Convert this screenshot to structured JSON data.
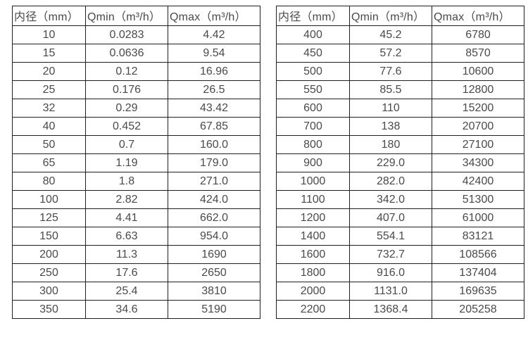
{
  "colors": {
    "background": "#ffffff",
    "border": "#1f1f1f",
    "text": "#4a4a4a"
  },
  "tables": [
    {
      "name": "flow-rates-small-diameters",
      "headers": [
        "内径（mm）",
        "Qmin（m³/h）",
        "Qmax（m³/h）"
      ],
      "rows": [
        [
          "10",
          "0.0283",
          "4.42"
        ],
        [
          "15",
          "0.0636",
          "9.54"
        ],
        [
          "20",
          "0.12",
          "16.96"
        ],
        [
          "25",
          "0.176",
          "26.5"
        ],
        [
          "32",
          "0.29",
          "43.42"
        ],
        [
          "40",
          "0.452",
          "67.85"
        ],
        [
          "50",
          "0.7",
          "160.0"
        ],
        [
          "65",
          "1.19",
          "179.0"
        ],
        [
          "80",
          "1.8",
          "271.0"
        ],
        [
          "100",
          "2.82",
          "424.0"
        ],
        [
          "125",
          "4.41",
          "662.0"
        ],
        [
          "150",
          "6.63",
          "954.0"
        ],
        [
          "200",
          "11.3",
          "1690"
        ],
        [
          "250",
          "17.6",
          "2650"
        ],
        [
          "300",
          "25.4",
          "3810"
        ],
        [
          "350",
          "34.6",
          "5190"
        ]
      ]
    },
    {
      "name": "flow-rates-large-diameters",
      "headers": [
        "内径（mm）",
        "Qmin（m³/h）",
        "Qmax（m³/h）"
      ],
      "rows": [
        [
          "400",
          "45.2",
          "6780"
        ],
        [
          "450",
          "57.2",
          "8570"
        ],
        [
          "500",
          "77.6",
          "10600"
        ],
        [
          "550",
          "85.5",
          "12800"
        ],
        [
          "600",
          "110",
          "15200"
        ],
        [
          "700",
          "138",
          "20700"
        ],
        [
          "800",
          "180",
          "27100"
        ],
        [
          "900",
          "229.0",
          "34300"
        ],
        [
          "1000",
          "282.0",
          "42400"
        ],
        [
          "1100",
          "342.0",
          "51300"
        ],
        [
          "1200",
          "407.0",
          "61000"
        ],
        [
          "1400",
          "554.1",
          "83121"
        ],
        [
          "1600",
          "732.7",
          "108566"
        ],
        [
          "1800",
          "916.0",
          "137404"
        ],
        [
          "2000",
          "1131.0",
          "169635"
        ],
        [
          "2200",
          "1368.4",
          "205258"
        ]
      ]
    }
  ]
}
